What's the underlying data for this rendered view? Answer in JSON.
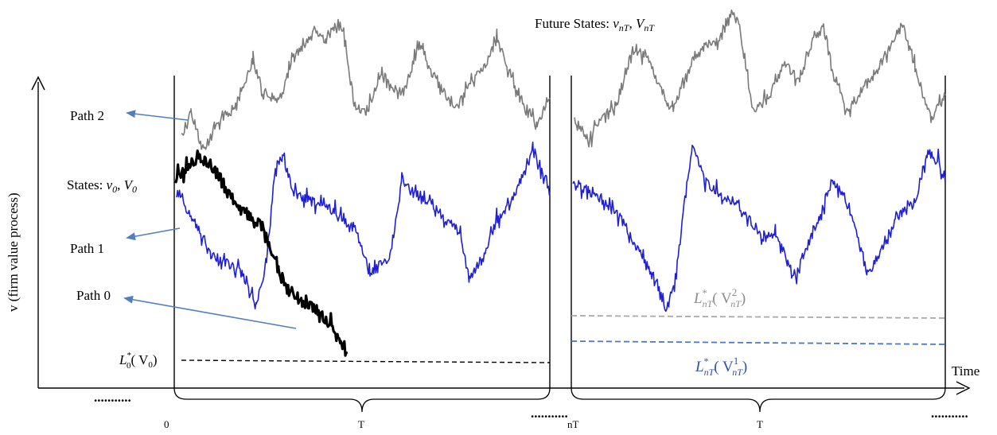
{
  "colors": {
    "gray_path": "#7a7a7a",
    "blue_path": "#1f1fd6",
    "black_path": "#000000",
    "arrow": "#4f7fc0",
    "gray_threshold": "#a9a9a9",
    "blue_threshold": "#4a78c4",
    "blue_label": "#2a52a8",
    "gray_label": "#8c8c8c"
  },
  "labels": {
    "future_states": "Future States: ",
    "future_states_symbols": "ν",
    "states": "States: ",
    "path2": "Path 2",
    "path1": "Path 1",
    "path0": "Path 0",
    "y_axis": "v (firm value process)",
    "time": "Time"
  },
  "ticks": {
    "zero": "0",
    "t1": "T",
    "nT": "nT",
    "t2": "T",
    "dots_left": "...........",
    "dots_mid": "...........",
    "dots_right": "..........."
  },
  "thresholds": {
    "l0": {
      "L": "L",
      "star": "*",
      "sub": "0",
      "arg": "( V",
      "argsub": "0",
      "close": ")"
    },
    "gray": {
      "L": "L",
      "star": "*",
      "sub": "nT",
      "arg": "( V",
      "argsup": "2",
      "argsub": "nT",
      "close": ")"
    },
    "blue": {
      "L": "L",
      "star": "*",
      "sub": "nT",
      "arg": "( V",
      "argsup": "1",
      "argsub": "nT",
      "close": ")"
    }
  },
  "symbols": {
    "nu": "ν",
    "V": "V",
    "comma": ", ",
    "sub0": "0",
    "subnT": "nT"
  }
}
